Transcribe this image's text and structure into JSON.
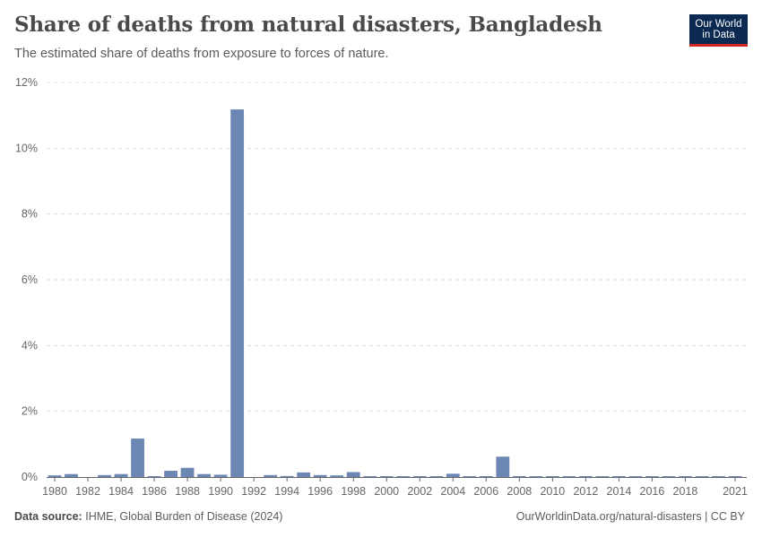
{
  "header": {
    "title": "Share of deaths from natural disasters, Bangladesh",
    "subtitle": "The estimated share of deaths from exposure to forces of nature."
  },
  "logo": {
    "line1": "Our World",
    "line2": "in Data"
  },
  "footer": {
    "source_label": "Data source:",
    "source_text": "IHME, Global Burden of Disease (2024)",
    "url_text": "OurWorldinData.org/natural-disasters | CC BY"
  },
  "colors": {
    "bar": "#6d87b5",
    "grid": "#dddddd",
    "axis": "#666666",
    "logo_bg": "#0b2a52",
    "logo_accent": "#ce261e"
  },
  "chart_data": {
    "type": "bar",
    "title": "Share of deaths from natural disasters, Bangladesh",
    "xlabel": "",
    "ylabel": "",
    "ylim": [
      0,
      12
    ],
    "y_ticks": [
      0,
      2,
      4,
      6,
      8,
      10,
      12
    ],
    "y_tick_labels": [
      "0%",
      "2%",
      "4%",
      "6%",
      "8%",
      "10%",
      "12%"
    ],
    "x_tick_labels": [
      "1980",
      "1982",
      "1984",
      "1986",
      "1988",
      "1990",
      "1992",
      "1994",
      "1996",
      "1998",
      "2000",
      "2002",
      "2004",
      "2006",
      "2008",
      "2010",
      "2012",
      "2014",
      "2016",
      "2018",
      "2021"
    ],
    "grid": true,
    "categories": [
      1980,
      1981,
      1982,
      1983,
      1984,
      1985,
      1986,
      1987,
      1988,
      1989,
      1990,
      1991,
      1992,
      1993,
      1994,
      1995,
      1996,
      1997,
      1998,
      1999,
      2000,
      2001,
      2002,
      2003,
      2004,
      2005,
      2006,
      2007,
      2008,
      2009,
      2010,
      2011,
      2012,
      2013,
      2014,
      2015,
      2016,
      2017,
      2018,
      2019,
      2020,
      2021
    ],
    "values": [
      0.05,
      0.09,
      0.0,
      0.06,
      0.09,
      1.17,
      0.01,
      0.19,
      0.28,
      0.09,
      0.07,
      11.18,
      0.0,
      0.06,
      0.03,
      0.14,
      0.06,
      0.05,
      0.15,
      0.02,
      0.01,
      0.02,
      0.01,
      0.02,
      0.1,
      0.01,
      0.01,
      0.62,
      0.01,
      0.02,
      0.01,
      0.01,
      0.02,
      0.01,
      0.01,
      0.01,
      0.01,
      0.02,
      0.01,
      0.02,
      0.01,
      0.01
    ]
  }
}
